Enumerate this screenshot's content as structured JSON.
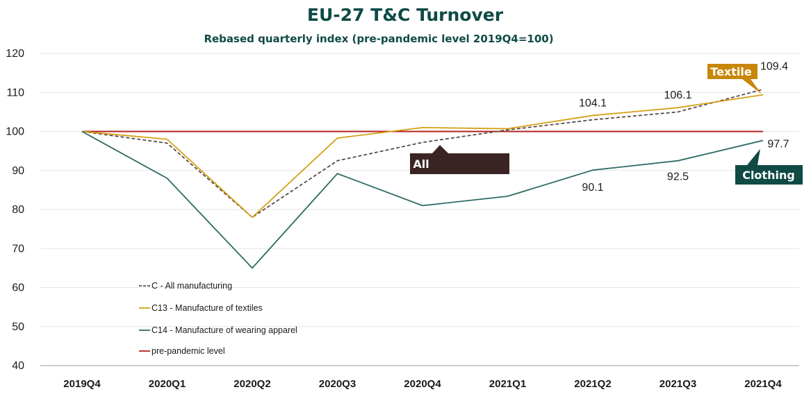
{
  "chart_data": {
    "type": "line",
    "title": "EU-27 T&C Turnover",
    "subtitle": "Rebased quarterly index (pre-pandemic level 2019Q4=100)",
    "categories": [
      "2019Q4",
      "2020Q1",
      "2020Q2",
      "2020Q3",
      "2020Q4",
      "2021Q1",
      "2021Q2",
      "2021Q3",
      "2021Q4"
    ],
    "ylim": [
      40,
      120
    ],
    "yticks": [
      40,
      50,
      60,
      70,
      80,
      90,
      100,
      110,
      120
    ],
    "grid": true,
    "legend_position": "bottom-left",
    "series": [
      {
        "name": "C - All manufacturing",
        "color": "#5a4a4a",
        "dash": true,
        "values": [
          100,
          97,
          78,
          92.5,
          97.2,
          100.4,
          103,
          105,
          110.8
        ]
      },
      {
        "name": "C13 - Manufacture of textiles",
        "color": "#d4a017",
        "dash": false,
        "values": [
          100,
          98,
          78,
          98.3,
          101,
          100.7,
          104.1,
          106.1,
          109.4
        ]
      },
      {
        "name": "C14 - Manufacture of wearing apparel",
        "color": "#2e6b66",
        "dash": false,
        "values": [
          100,
          88,
          65,
          89.2,
          81,
          83.4,
          90.1,
          92.5,
          97.7
        ]
      },
      {
        "name": "pre-pandemic level",
        "color": "#b22222",
        "dash": false,
        "values": [
          100,
          100,
          100,
          100,
          100,
          100,
          100,
          100,
          100
        ]
      }
    ],
    "data_labels": [
      {
        "category": "2021Q2",
        "value": 104.1,
        "text": "104.1"
      },
      {
        "category": "2021Q3",
        "value": 106.1,
        "text": "106.1"
      },
      {
        "category": "2021Q4",
        "value": 109.4,
        "text": "109.4"
      },
      {
        "category": "2021Q2",
        "value": 90.1,
        "text": "90.1"
      },
      {
        "category": "2021Q3",
        "value": 92.5,
        "text": "92.5"
      },
      {
        "category": "2021Q4",
        "value": 97.7,
        "text": "97.7"
      }
    ],
    "callouts": [
      {
        "text": "Textile",
        "color": "#c8860a"
      },
      {
        "text": "All",
        "color": "#3b2424"
      },
      {
        "text": "Clothing",
        "color": "#0f4a45"
      }
    ]
  }
}
